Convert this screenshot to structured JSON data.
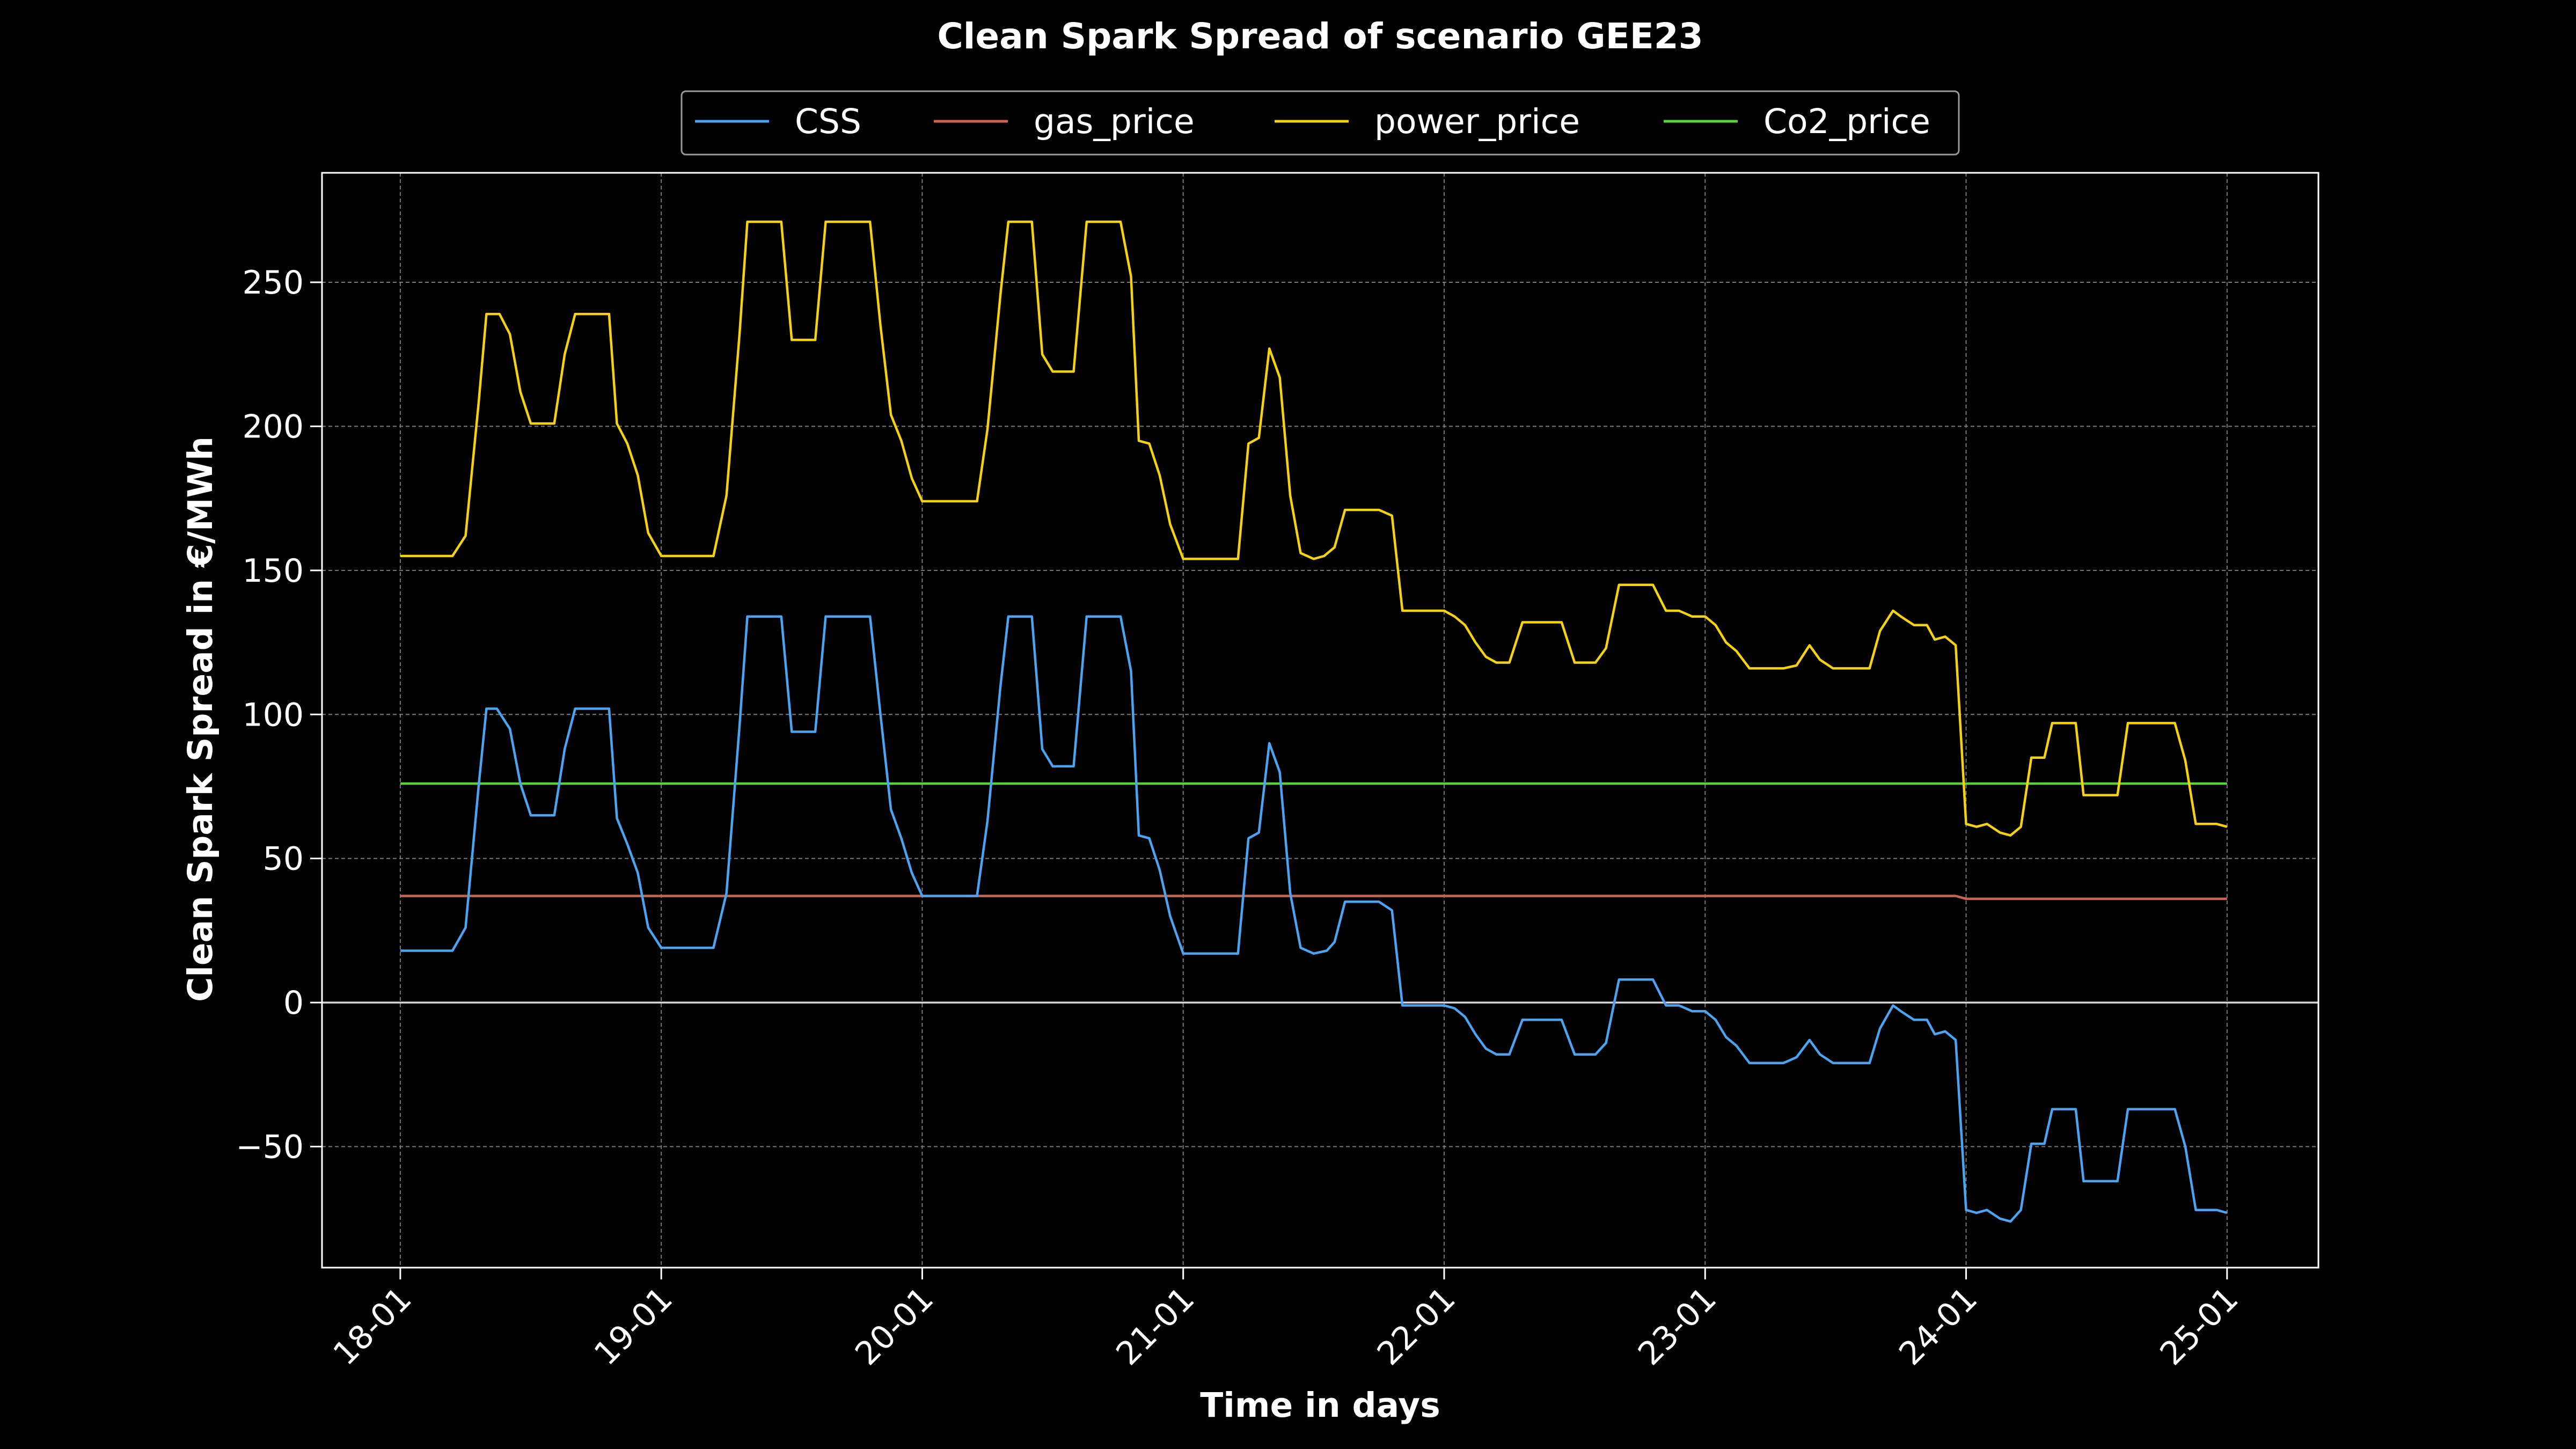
{
  "chart_data": {
    "type": "line",
    "title": "Clean Spark Spread of scenario GEE23",
    "xlabel": "Time in days",
    "ylabel": "Clean Spark Spread in €/MWh",
    "xlim_days": [
      -0.3,
      7.35
    ],
    "ylim": [
      -92,
      288
    ],
    "x_ticks": [
      "18-01",
      "19-01",
      "20-01",
      "21-01",
      "22-01",
      "23-01",
      "24-01",
      "25-01"
    ],
    "y_ticks": [
      -50,
      0,
      50,
      100,
      150,
      200,
      250
    ],
    "y_tick_labels": [
      "−50",
      "0",
      "50",
      "100",
      "150",
      "200",
      "250"
    ],
    "grid": true,
    "zero_line": true,
    "legend_position": "top-center",
    "series": [
      {
        "name": "CSS",
        "color": "#4ca3f0",
        "points": [
          [
            0,
            18
          ],
          [
            0.2,
            18
          ],
          [
            0.25,
            26
          ],
          [
            0.3,
            75
          ],
          [
            0.33,
            102
          ],
          [
            0.37,
            102
          ],
          [
            0.42,
            95
          ],
          [
            0.46,
            76
          ],
          [
            0.5,
            65
          ],
          [
            0.59,
            65
          ],
          [
            0.63,
            88
          ],
          [
            0.67,
            102
          ],
          [
            0.8,
            102
          ],
          [
            0.83,
            64
          ],
          [
            0.87,
            55
          ],
          [
            0.91,
            45
          ],
          [
            0.95,
            26
          ],
          [
            1.0,
            19
          ],
          [
            1.2,
            19
          ],
          [
            1.25,
            38
          ],
          [
            1.3,
            96
          ],
          [
            1.33,
            134
          ],
          [
            1.46,
            134
          ],
          [
            1.5,
            94
          ],
          [
            1.59,
            94
          ],
          [
            1.63,
            134
          ],
          [
            1.8,
            134
          ],
          [
            1.84,
            100
          ],
          [
            1.88,
            67
          ],
          [
            1.92,
            57
          ],
          [
            1.96,
            45
          ],
          [
            2.0,
            37
          ],
          [
            2.21,
            37
          ],
          [
            2.25,
            63
          ],
          [
            2.3,
            110
          ],
          [
            2.33,
            134
          ],
          [
            2.42,
            134
          ],
          [
            2.46,
            88
          ],
          [
            2.5,
            82
          ],
          [
            2.58,
            82
          ],
          [
            2.63,
            134
          ],
          [
            2.76,
            134
          ],
          [
            2.8,
            115
          ],
          [
            2.83,
            58
          ],
          [
            2.87,
            57
          ],
          [
            2.91,
            46
          ],
          [
            2.95,
            30
          ],
          [
            3.0,
            17
          ],
          [
            3.21,
            17
          ],
          [
            3.25,
            57
          ],
          [
            3.29,
            59
          ],
          [
            3.33,
            90
          ],
          [
            3.37,
            80
          ],
          [
            3.41,
            38
          ],
          [
            3.45,
            19
          ],
          [
            3.5,
            17
          ],
          [
            3.55,
            18
          ],
          [
            3.58,
            21
          ],
          [
            3.62,
            35
          ],
          [
            3.75,
            35
          ],
          [
            3.8,
            32
          ],
          [
            3.84,
            -1
          ],
          [
            4.0,
            -1
          ],
          [
            4.04,
            -2
          ],
          [
            4.08,
            -5
          ],
          [
            4.12,
            -11
          ],
          [
            4.16,
            -16
          ],
          [
            4.2,
            -18
          ],
          [
            4.25,
            -18
          ],
          [
            4.3,
            -6
          ],
          [
            4.45,
            -6
          ],
          [
            4.5,
            -18
          ],
          [
            4.58,
            -18
          ],
          [
            4.62,
            -14
          ],
          [
            4.67,
            8
          ],
          [
            4.8,
            8
          ],
          [
            4.85,
            -1
          ],
          [
            4.9,
            -1
          ],
          [
            4.95,
            -3
          ],
          [
            5.0,
            -3
          ],
          [
            5.04,
            -6
          ],
          [
            5.08,
            -12
          ],
          [
            5.12,
            -15
          ],
          [
            5.17,
            -21
          ],
          [
            5.3,
            -21
          ],
          [
            5.35,
            -19
          ],
          [
            5.4,
            -13
          ],
          [
            5.44,
            -18
          ],
          [
            5.49,
            -21
          ],
          [
            5.6,
            -21
          ],
          [
            5.63,
            -21
          ],
          [
            5.67,
            -9
          ],
          [
            5.72,
            -1
          ],
          [
            5.75,
            -3
          ],
          [
            5.8,
            -6
          ],
          [
            5.85,
            -6
          ],
          [
            5.88,
            -11
          ],
          [
            5.92,
            -10
          ],
          [
            5.96,
            -13
          ],
          [
            6.0,
            -72
          ],
          [
            6.04,
            -73
          ],
          [
            6.08,
            -72
          ],
          [
            6.13,
            -75
          ],
          [
            6.17,
            -76
          ],
          [
            6.21,
            -72
          ],
          [
            6.25,
            -49
          ],
          [
            6.3,
            -49
          ],
          [
            6.33,
            -37
          ],
          [
            6.42,
            -37
          ],
          [
            6.45,
            -62
          ],
          [
            6.58,
            -62
          ],
          [
            6.62,
            -37
          ],
          [
            6.8,
            -37
          ],
          [
            6.84,
            -50
          ],
          [
            6.88,
            -72
          ],
          [
            6.96,
            -72
          ],
          [
            7.0,
            -73
          ]
        ]
      },
      {
        "name": "gas_price",
        "color": "#c86450",
        "points": [
          [
            0,
            37
          ],
          [
            5.96,
            37
          ],
          [
            6.0,
            36
          ],
          [
            7.0,
            36
          ]
        ]
      },
      {
        "name": "power_price",
        "color": "#f5d20f",
        "points": [
          [
            0,
            155
          ],
          [
            0.2,
            155
          ],
          [
            0.25,
            162
          ],
          [
            0.3,
            208
          ],
          [
            0.33,
            239
          ],
          [
            0.38,
            239
          ],
          [
            0.42,
            232
          ],
          [
            0.46,
            212
          ],
          [
            0.5,
            201
          ],
          [
            0.59,
            201
          ],
          [
            0.63,
            225
          ],
          [
            0.67,
            239
          ],
          [
            0.8,
            239
          ],
          [
            0.83,
            201
          ],
          [
            0.87,
            194
          ],
          [
            0.91,
            183
          ],
          [
            0.95,
            163
          ],
          [
            1.0,
            155
          ],
          [
            1.2,
            155
          ],
          [
            1.25,
            176
          ],
          [
            1.3,
            232
          ],
          [
            1.33,
            271
          ],
          [
            1.46,
            271
          ],
          [
            1.5,
            230
          ],
          [
            1.59,
            230
          ],
          [
            1.63,
            271
          ],
          [
            1.8,
            271
          ],
          [
            1.84,
            235
          ],
          [
            1.88,
            204
          ],
          [
            1.92,
            195
          ],
          [
            1.96,
            182
          ],
          [
            2.0,
            174
          ],
          [
            2.21,
            174
          ],
          [
            2.25,
            199
          ],
          [
            2.3,
            246
          ],
          [
            2.33,
            271
          ],
          [
            2.42,
            271
          ],
          [
            2.46,
            225
          ],
          [
            2.5,
            219
          ],
          [
            2.58,
            219
          ],
          [
            2.63,
            271
          ],
          [
            2.76,
            271
          ],
          [
            2.8,
            252
          ],
          [
            2.83,
            195
          ],
          [
            2.87,
            194
          ],
          [
            2.91,
            183
          ],
          [
            2.95,
            166
          ],
          [
            3.0,
            154
          ],
          [
            3.21,
            154
          ],
          [
            3.25,
            194
          ],
          [
            3.29,
            196
          ],
          [
            3.33,
            227
          ],
          [
            3.37,
            217
          ],
          [
            3.41,
            176
          ],
          [
            3.45,
            156
          ],
          [
            3.5,
            154
          ],
          [
            3.54,
            155
          ],
          [
            3.58,
            158
          ],
          [
            3.62,
            171
          ],
          [
            3.75,
            171
          ],
          [
            3.8,
            169
          ],
          [
            3.84,
            136
          ],
          [
            4.0,
            136
          ],
          [
            4.04,
            134
          ],
          [
            4.08,
            131
          ],
          [
            4.12,
            125
          ],
          [
            4.16,
            120
          ],
          [
            4.2,
            118
          ],
          [
            4.25,
            118
          ],
          [
            4.3,
            132
          ],
          [
            4.45,
            132
          ],
          [
            4.5,
            118
          ],
          [
            4.58,
            118
          ],
          [
            4.62,
            123
          ],
          [
            4.67,
            145
          ],
          [
            4.8,
            145
          ],
          [
            4.85,
            136
          ],
          [
            4.9,
            136
          ],
          [
            4.95,
            134
          ],
          [
            5.0,
            134
          ],
          [
            5.04,
            131
          ],
          [
            5.08,
            125
          ],
          [
            5.12,
            122
          ],
          [
            5.17,
            116
          ],
          [
            5.3,
            116
          ],
          [
            5.35,
            117
          ],
          [
            5.4,
            124
          ],
          [
            5.44,
            119
          ],
          [
            5.49,
            116
          ],
          [
            5.63,
            116
          ],
          [
            5.67,
            129
          ],
          [
            5.72,
            136
          ],
          [
            5.75,
            134
          ],
          [
            5.8,
            131
          ],
          [
            5.85,
            131
          ],
          [
            5.88,
            126
          ],
          [
            5.92,
            127
          ],
          [
            5.96,
            124
          ],
          [
            6.0,
            62
          ],
          [
            6.04,
            61
          ],
          [
            6.08,
            62
          ],
          [
            6.13,
            59
          ],
          [
            6.17,
            58
          ],
          [
            6.21,
            61
          ],
          [
            6.25,
            85
          ],
          [
            6.3,
            85
          ],
          [
            6.33,
            97
          ],
          [
            6.42,
            97
          ],
          [
            6.45,
            72
          ],
          [
            6.58,
            72
          ],
          [
            6.62,
            97
          ],
          [
            6.8,
            97
          ],
          [
            6.84,
            84
          ],
          [
            6.88,
            62
          ],
          [
            6.96,
            62
          ],
          [
            7.0,
            61
          ]
        ]
      },
      {
        "name": "Co2_price",
        "color": "#5ad23c",
        "points": [
          [
            0,
            76
          ],
          [
            7.0,
            76
          ]
        ]
      }
    ]
  }
}
